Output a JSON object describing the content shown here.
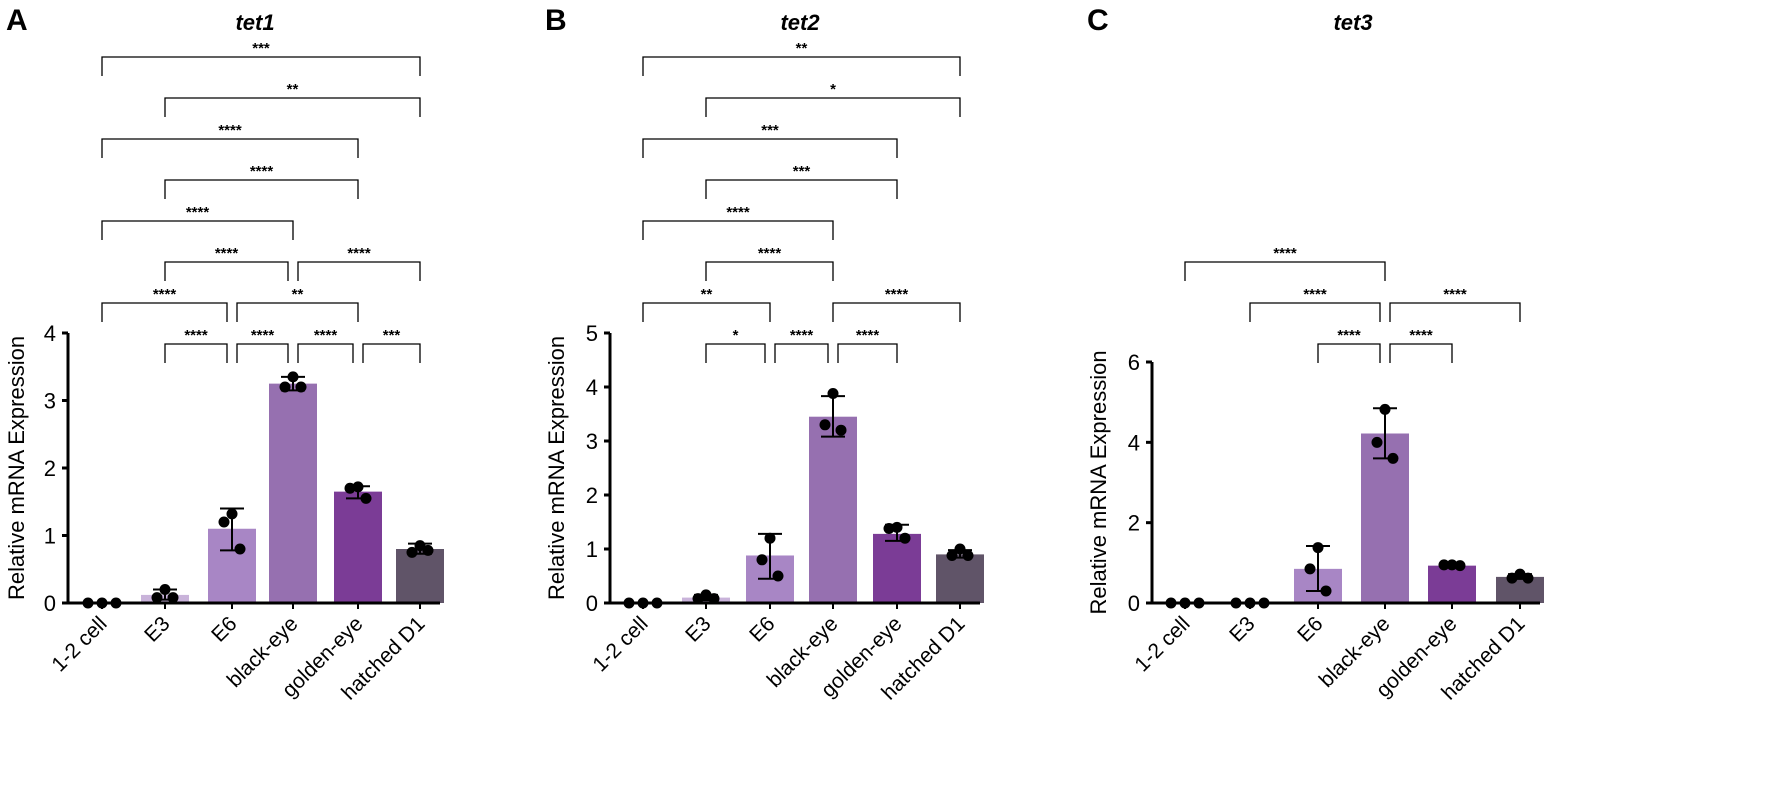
{
  "chart_data": [
    {
      "type": "bar",
      "panel": "A",
      "title": "tet1",
      "ylabel": "Relative mRNA Expression",
      "xlabel": "",
      "ylim": [
        0,
        4
      ],
      "yticks": [
        "0",
        "1",
        "2",
        "3",
        "4"
      ],
      "categories": [
        "1-2 cell",
        "E3",
        "E6",
        "black-eye",
        "golden-eye",
        "hatched D1"
      ],
      "values": [
        0.0,
        0.12,
        1.1,
        3.25,
        1.65,
        0.8
      ],
      "error_low": [
        0.0,
        0.05,
        0.78,
        3.15,
        1.55,
        0.73
      ],
      "error_high": [
        0.0,
        0.2,
        1.4,
        3.35,
        1.73,
        0.88
      ],
      "points": [
        [
          0,
          0,
          0
        ],
        [
          0.2,
          0.08,
          0.08
        ],
        [
          1.32,
          1.2,
          0.8
        ],
        [
          3.35,
          3.2,
          3.2
        ],
        [
          1.72,
          1.7,
          1.55
        ],
        [
          0.85,
          0.75,
          0.78
        ]
      ],
      "comparisons": [
        {
          "from": 0,
          "to": 5,
          "label": "***",
          "level": 0
        },
        {
          "from": 1,
          "to": 5,
          "label": "**",
          "level": 1
        },
        {
          "from": 0,
          "to": 4,
          "label": "****",
          "level": 2
        },
        {
          "from": 1,
          "to": 4,
          "label": "****",
          "level": 3
        },
        {
          "from": 0,
          "to": 3,
          "label": "****",
          "level": 4
        },
        {
          "from": 1,
          "to": 3,
          "label": "****",
          "level": 5
        },
        {
          "from": 3,
          "to": 5,
          "label": "****",
          "level": 5
        },
        {
          "from": 0,
          "to": 2,
          "label": "****",
          "level": 6
        },
        {
          "from": 2,
          "to": 4,
          "label": "**",
          "level": 6
        },
        {
          "from": 1,
          "to": 2,
          "label": "****",
          "level": 7
        },
        {
          "from": 2,
          "to": 3,
          "label": "****",
          "level": 7
        },
        {
          "from": 3,
          "to": 4,
          "label": "****",
          "level": 7
        },
        {
          "from": 4,
          "to": 5,
          "label": "***",
          "level": 7
        }
      ]
    },
    {
      "type": "bar",
      "panel": "B",
      "title": "tet2",
      "ylabel": "Relative mRNA Expression",
      "xlabel": "",
      "ylim": [
        0,
        5
      ],
      "yticks": [
        "0",
        "1",
        "2",
        "3",
        "4",
        "5"
      ],
      "categories": [
        "1-2 cell",
        "E3",
        "E6",
        "black-eye",
        "golden-eye",
        "hatched D1"
      ],
      "values": [
        0.0,
        0.1,
        0.88,
        3.45,
        1.28,
        0.9
      ],
      "error_low": [
        0.0,
        0.05,
        0.45,
        3.08,
        1.15,
        0.84
      ],
      "error_high": [
        0.0,
        0.15,
        1.28,
        3.83,
        1.45,
        0.98
      ],
      "points": [
        [
          0,
          0,
          0
        ],
        [
          0.15,
          0.08,
          0.08
        ],
        [
          1.2,
          0.8,
          0.5
        ],
        [
          3.88,
          3.3,
          3.2
        ],
        [
          1.4,
          1.38,
          1.2
        ],
        [
          1.0,
          0.88,
          0.88
        ]
      ],
      "comparisons": [
        {
          "from": 0,
          "to": 5,
          "label": "**",
          "level": 0
        },
        {
          "from": 1,
          "to": 5,
          "label": "*",
          "level": 1
        },
        {
          "from": 0,
          "to": 4,
          "label": "***",
          "level": 2
        },
        {
          "from": 1,
          "to": 4,
          "label": "***",
          "level": 3
        },
        {
          "from": 0,
          "to": 3,
          "label": "****",
          "level": 4
        },
        {
          "from": 1,
          "to": 3,
          "label": "****",
          "level": 5
        },
        {
          "from": 0,
          "to": 2,
          "label": "**",
          "level": 6
        },
        {
          "from": 3,
          "to": 5,
          "label": "****",
          "level": 6
        },
        {
          "from": 1,
          "to": 2,
          "label": "*",
          "level": 7
        },
        {
          "from": 2,
          "to": 3,
          "label": "****",
          "level": 7
        },
        {
          "from": 3,
          "to": 4,
          "label": "****",
          "level": 7
        }
      ]
    },
    {
      "type": "bar",
      "panel": "C",
      "title": "tet3",
      "ylabel": "Relative mRNA Expression",
      "xlabel": "",
      "ylim": [
        0,
        6
      ],
      "yticks": [
        "0",
        "2",
        "4",
        "6"
      ],
      "categories": [
        "1-2 cell",
        "E3",
        "E6",
        "black-eye",
        "golden-eye",
        "hatched D1"
      ],
      "values": [
        0.0,
        0.0,
        0.85,
        4.22,
        0.93,
        0.65
      ],
      "error_low": [
        0.0,
        0.0,
        0.3,
        3.6,
        0.9,
        0.6
      ],
      "error_high": [
        0.0,
        0.0,
        1.42,
        4.85,
        0.97,
        0.72
      ],
      "points": [
        [
          0,
          0,
          0
        ],
        [
          0,
          0,
          0
        ],
        [
          1.38,
          0.85,
          0.3
        ],
        [
          4.82,
          4.0,
          3.6
        ],
        [
          0.95,
          0.95,
          0.93
        ],
        [
          0.72,
          0.62,
          0.62
        ]
      ],
      "comparisons": [
        {
          "from": 0,
          "to": 3,
          "label": "****",
          "level": 5
        },
        {
          "from": 1,
          "to": 3,
          "label": "****",
          "level": 6
        },
        {
          "from": 3,
          "to": 5,
          "label": "****",
          "level": 6
        },
        {
          "from": 2,
          "to": 3,
          "label": "****",
          "level": 7
        },
        {
          "from": 3,
          "to": 4,
          "label": "****",
          "level": 7
        }
      ]
    }
  ],
  "colors": {
    "bars": [
      "#d9cce6",
      "#c9b3da",
      "#a886c5",
      "#9670b0",
      "#7b3c96",
      "#605468"
    ],
    "axis": "#000000",
    "points": "#000000"
  }
}
